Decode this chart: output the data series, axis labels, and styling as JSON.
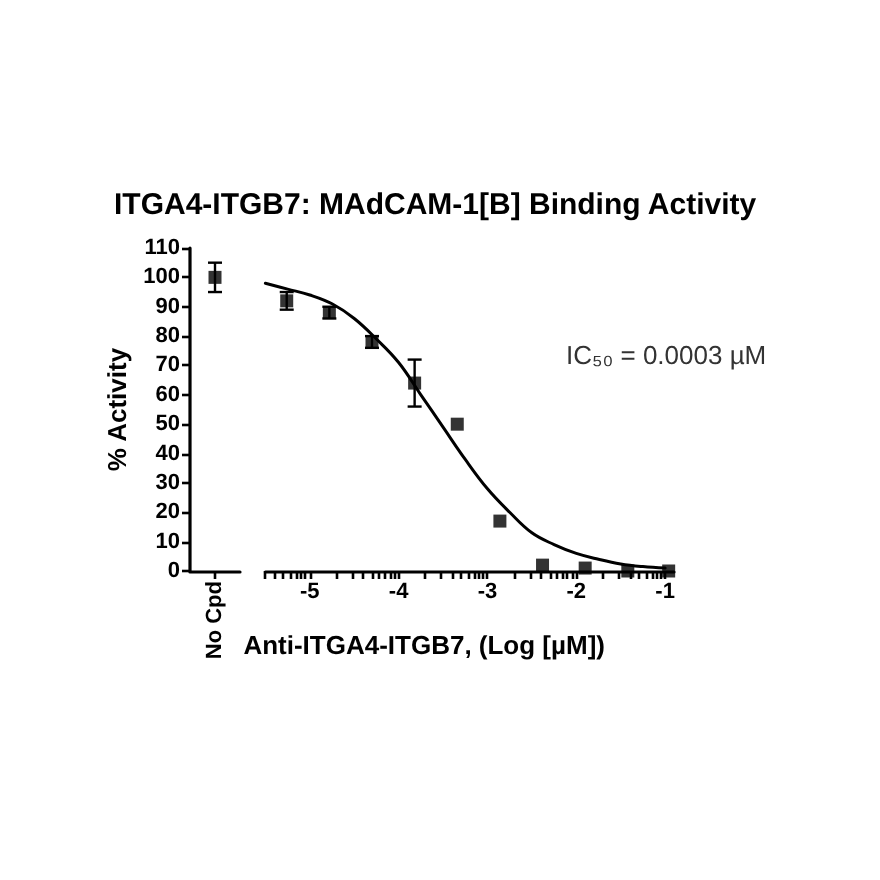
{
  "chart_data": [
    {
      "type": "scatter",
      "title": "ITGA4-ITGB7: MAdCAM-1[B] Binding Activity",
      "ylabel": "% Activity",
      "categories": [
        "No Cpd"
      ],
      "series": [
        {
          "color": "#000000",
          "values": [
            100
          ],
          "errors": [
            5
          ]
        }
      ],
      "ylim": [
        0,
        110
      ],
      "yticks": [
        0,
        10,
        20,
        30,
        40,
        50,
        60,
        70,
        80,
        90,
        100,
        110
      ],
      "marker": "square"
    },
    {
      "type": "scatter",
      "xlabel": "Anti-ITGA4-ITGB7, (Log [µM])",
      "x": [
        -5.26,
        -4.78,
        -4.3,
        -3.82,
        -3.34,
        -2.86,
        -2.38,
        -1.9,
        -1.42,
        -0.96
      ],
      "series": [
        {
          "color": "#000000",
          "values": [
            92,
            88,
            78,
            64,
            50,
            17,
            2,
            1,
            0,
            0
          ],
          "errors": [
            3,
            2,
            2,
            8,
            null,
            null,
            null,
            null,
            null,
            null
          ]
        },
        {
          "type": "line",
          "color": "#000000",
          "marker": "none",
          "x": [
            -5.5,
            -5.25,
            -5,
            -4.75,
            -4.5,
            -4.25,
            -4,
            -3.75,
            -3.5,
            -3.25,
            -3,
            -2.75,
            -2.5,
            -2.25,
            -2,
            -1.75,
            -1.5,
            -1.25,
            -1
          ],
          "values": [
            98,
            96,
            94,
            91,
            86,
            79,
            71,
            60,
            49,
            38,
            28,
            20,
            13,
            9,
            6,
            4,
            2.4,
            1.5,
            1
          ]
        }
      ],
      "xlim": [
        -5.5,
        -0.9
      ],
      "xticks": [
        {
          "value": -5.5,
          "label": null
        },
        {
          "value": -5.4,
          "label": null
        },
        {
          "value": -5.3,
          "label": null
        },
        {
          "value": -5.22,
          "label": null
        },
        {
          "value": -5.15,
          "label": null
        },
        {
          "value": -5.1,
          "label": null
        },
        {
          "value": -5.05,
          "label": null
        },
        -5,
        {
          "value": -4.7,
          "label": null
        },
        {
          "value": -4.52,
          "label": null
        },
        {
          "value": -4.4,
          "label": null
        },
        {
          "value": -4.3,
          "label": null
        },
        {
          "value": -4.22,
          "label": null
        },
        {
          "value": -4.15,
          "label": null
        },
        {
          "value": -4.1,
          "label": null
        },
        {
          "value": -4.05,
          "label": null
        },
        -4,
        {
          "value": -3.7,
          "label": null
        },
        {
          "value": -3.52,
          "label": null
        },
        {
          "value": -3.4,
          "label": null
        },
        {
          "value": -3.3,
          "label": null
        },
        {
          "value": -3.22,
          "label": null
        },
        {
          "value": -3.15,
          "label": null
        },
        {
          "value": -3.1,
          "label": null
        },
        {
          "value": -3.05,
          "label": null
        },
        -3,
        {
          "value": -2.7,
          "label": null
        },
        {
          "value": -2.52,
          "label": null
        },
        {
          "value": -2.4,
          "label": null
        },
        {
          "value": -2.3,
          "label": null
        },
        {
          "value": -2.22,
          "label": null
        },
        {
          "value": -2.15,
          "label": null
        },
        {
          "value": -2.1,
          "label": null
        },
        {
          "value": -2.05,
          "label": null
        },
        -2,
        {
          "value": -1.7,
          "label": null
        },
        {
          "value": -1.52,
          "label": null
        },
        {
          "value": -1.4,
          "label": null
        },
        {
          "value": -1.3,
          "label": null
        },
        {
          "value": -1.22,
          "label": null
        },
        {
          "value": -1.15,
          "label": null
        },
        {
          "value": -1.1,
          "label": null
        },
        {
          "value": -1.05,
          "label": null
        },
        -1
      ],
      "ylim": [
        0,
        110
      ],
      "marker": "square",
      "tick_labels": "x",
      "annotations": [
        "IC₅₀ = 0.0003 µM"
      ]
    }
  ]
}
